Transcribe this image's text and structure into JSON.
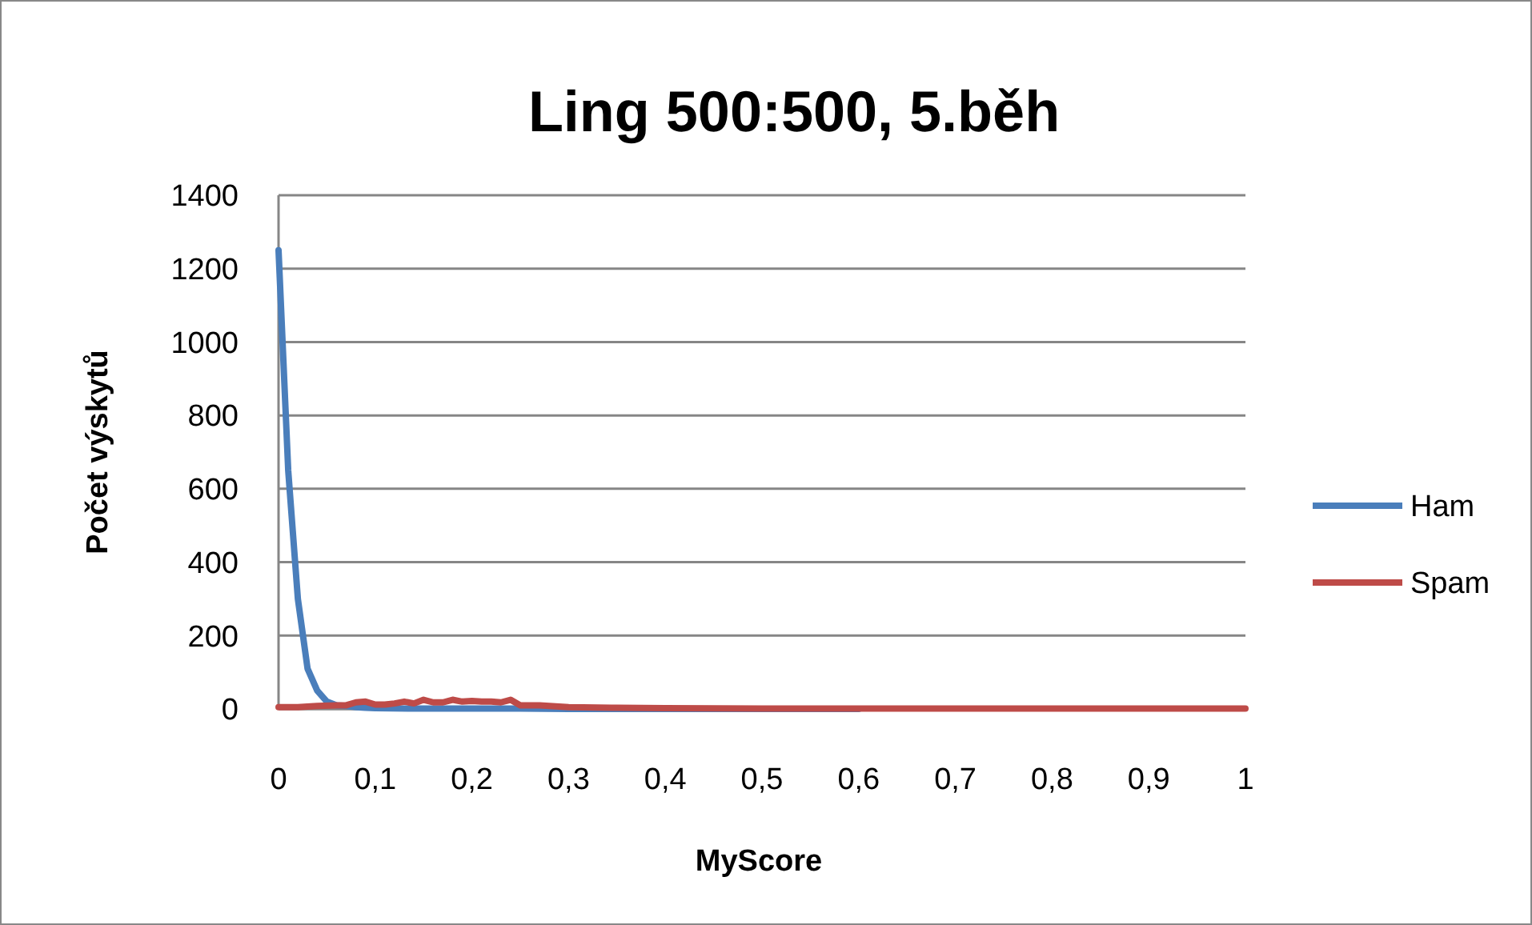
{
  "chart_data": {
    "type": "line",
    "title": "Ling 500:500, 5.běh",
    "xlabel": "MyScore",
    "ylabel": "Počet výskytů",
    "xlim": [
      0,
      1
    ],
    "xticks": [
      0,
      {
        "value": 0.1,
        "label": "0,1"
      },
      {
        "value": 0.2,
        "label": "0,2"
      },
      {
        "value": 0.3,
        "label": "0,3"
      },
      {
        "value": 0.4,
        "label": "0,4"
      },
      {
        "value": 0.5,
        "label": "0,5"
      },
      {
        "value": 0.6,
        "label": "0,6"
      },
      {
        "value": 0.7,
        "label": "0,7"
      },
      {
        "value": 0.8,
        "label": "0,8"
      },
      {
        "value": 0.9,
        "label": "0,9"
      },
      1
    ],
    "ylim": [
      0,
      1400
    ],
    "yticks": [
      0,
      200,
      400,
      600,
      800,
      1000,
      1200,
      1400
    ],
    "grid": "y",
    "legend": "right",
    "marker": "none",
    "line_style": "solid",
    "series": [
      {
        "name": "Ham",
        "color": "#4a7ebb",
        "x": [
          0,
          0.01,
          0.02,
          0.03,
          0.04,
          0.05,
          0.06,
          0.07,
          0.08,
          0.09,
          0.1,
          0.15,
          0.2,
          0.25,
          0.3,
          0.4,
          0.5,
          0.6
        ],
        "values": [
          1250,
          650,
          300,
          110,
          50,
          20,
          10,
          8,
          5,
          3,
          2,
          1,
          1,
          1,
          0,
          0,
          0,
          0
        ]
      },
      {
        "name": "Spam",
        "color": "#be4b48",
        "x": [
          0,
          0.02,
          0.04,
          0.06,
          0.07,
          0.08,
          0.09,
          0.1,
          0.11,
          0.12,
          0.13,
          0.14,
          0.15,
          0.16,
          0.17,
          0.18,
          0.19,
          0.2,
          0.21,
          0.22,
          0.23,
          0.24,
          0.25,
          0.27,
          0.3,
          0.35,
          0.4,
          0.5,
          0.6,
          0.7,
          0.8,
          0.9,
          1
        ],
        "values": [
          5,
          5,
          8,
          10,
          10,
          18,
          20,
          12,
          12,
          15,
          20,
          15,
          25,
          18,
          18,
          25,
          20,
          22,
          20,
          20,
          18,
          25,
          10,
          10,
          5,
          3,
          2,
          1,
          1,
          1,
          1,
          1,
          1
        ]
      }
    ]
  }
}
